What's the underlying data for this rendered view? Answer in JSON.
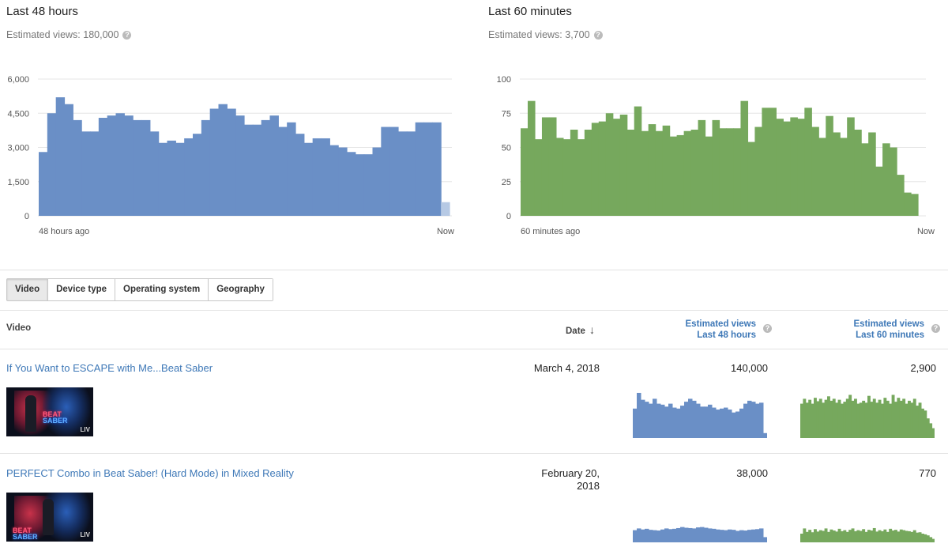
{
  "charts": {
    "left": {
      "title": "Last 48 hours",
      "subtitle": "Estimated views: 180,000",
      "help_glyph": "?",
      "color": "#6a8fc6",
      "partial_color": "#b6c9e4",
      "y_ticks": [
        "6,000",
        "4,500",
        "3,000",
        "1,500",
        "0"
      ],
      "x_start": "48 hours ago",
      "x_end": "Now"
    },
    "right": {
      "title": "Last 60 minutes",
      "subtitle": "Estimated views: 3,700",
      "help_glyph": "?",
      "color": "#76a85d",
      "y_ticks": [
        "100",
        "75",
        "50",
        "25",
        "0"
      ],
      "x_start": "60 minutes ago",
      "x_end": "Now"
    }
  },
  "chart_data": [
    {
      "type": "bar",
      "title": "Last 48 hours",
      "ylim": [
        0,
        6000
      ],
      "y_ticks": [
        0,
        1500,
        3000,
        4500,
        6000
      ],
      "x_range_labels": [
        "48 hours ago",
        "Now"
      ],
      "color": "#6a8fc6",
      "values": [
        2800,
        4500,
        5200,
        4900,
        4200,
        3700,
        3700,
        4300,
        4400,
        4500,
        4400,
        4200,
        4200,
        3700,
        3200,
        3300,
        3200,
        3400,
        3600,
        4200,
        4700,
        4900,
        4700,
        4400,
        4000,
        4000,
        4200,
        4400,
        3900,
        4100,
        3600,
        3200,
        3400,
        3400,
        3100,
        3000,
        2800,
        2700,
        2700,
        3000,
        3900,
        3900,
        3700,
        3700,
        4100,
        4100,
        4100,
        600
      ],
      "last_bar_partial": true
    },
    {
      "type": "bar",
      "title": "Last 60 minutes",
      "ylim": [
        0,
        100
      ],
      "y_ticks": [
        0,
        25,
        50,
        75,
        100
      ],
      "x_range_labels": [
        "60 minutes ago",
        "Now"
      ],
      "color": "#76a85d",
      "values": [
        64,
        84,
        56,
        72,
        72,
        57,
        56,
        63,
        56,
        63,
        68,
        69,
        75,
        71,
        74,
        63,
        80,
        62,
        67,
        62,
        66,
        58,
        59,
        62,
        63,
        70,
        58,
        70,
        64,
        64,
        64,
        84,
        54,
        65,
        79,
        79,
        71,
        69,
        72,
        71,
        79,
        65,
        57,
        73,
        61,
        57,
        72,
        63,
        53,
        61,
        36,
        53,
        50,
        30,
        17,
        16,
        0
      ]
    }
  ],
  "tabs": [
    {
      "label": "Video",
      "active": true
    },
    {
      "label": "Device type",
      "active": false
    },
    {
      "label": "Operating system",
      "active": false
    },
    {
      "label": "Geography",
      "active": false
    }
  ],
  "table": {
    "headers": {
      "video": "Video",
      "date": "Date",
      "date_sort_glyph": "↓",
      "views48_line1": "Estimated views",
      "views48_line2": "Last 48 hours",
      "views60_line1": "Estimated views",
      "views60_line2": "Last 60 minutes",
      "help_glyph": "?"
    },
    "rows": [
      {
        "title": "If You Want to ESCAPE with Me...Beat Saber",
        "date_line1": "March 4, 2018",
        "date_line2": "",
        "views48": "140,000",
        "views60": "2,900",
        "thumb_beat": "BEAT",
        "thumb_saber": "SABER",
        "thumb_liv": "LIV",
        "spark48": [
          60,
          92,
          78,
          74,
          70,
          80,
          70,
          68,
          64,
          70,
          62,
          60,
          66,
          74,
          80,
          76,
          70,
          64,
          64,
          68,
          62,
          58,
          60,
          62,
          58,
          52,
          54,
          60,
          70,
          76,
          74,
          70,
          72,
          10
        ],
        "spark60": [
          70,
          80,
          72,
          78,
          70,
          82,
          75,
          80,
          72,
          78,
          85,
          76,
          80,
          72,
          78,
          70,
          74,
          80,
          88,
          76,
          80,
          70,
          72,
          76,
          72,
          86,
          74,
          80,
          72,
          78,
          70,
          82,
          76,
          70,
          88,
          74,
          82,
          76,
          80,
          70,
          76,
          72,
          80,
          66,
          72,
          60,
          56,
          40,
          30,
          20
        ]
      },
      {
        "title": "PERFECT Combo in Beat Saber! (Hard Mode) in Mixed Reality",
        "date_line1": "February 20,",
        "date_line2": "2018",
        "views48": "38,000",
        "views60": "770",
        "thumb_beat": "BEAT",
        "thumb_saber": "SABER",
        "thumb_liv": "LIV",
        "spark48": [
          70,
          80,
          74,
          78,
          72,
          70,
          68,
          74,
          80,
          76,
          78,
          82,
          88,
          84,
          82,
          80,
          86,
          88,
          84,
          80,
          78,
          74,
          72,
          70,
          74,
          72,
          66,
          70,
          68,
          72,
          74,
          76,
          80,
          30
        ],
        "spark60": [
          50,
          80,
          60,
          72,
          58,
          76,
          62,
          70,
          66,
          80,
          60,
          74,
          68,
          62,
          78,
          64,
          70,
          60,
          72,
          80,
          64,
          70,
          66,
          76,
          60,
          72,
          68,
          82,
          62,
          70,
          64,
          74,
          60,
          78,
          68,
          72,
          62,
          74,
          70,
          66,
          64,
          60,
          70,
          56,
          58,
          50,
          46,
          40,
          30,
          20
        ]
      }
    ]
  }
}
